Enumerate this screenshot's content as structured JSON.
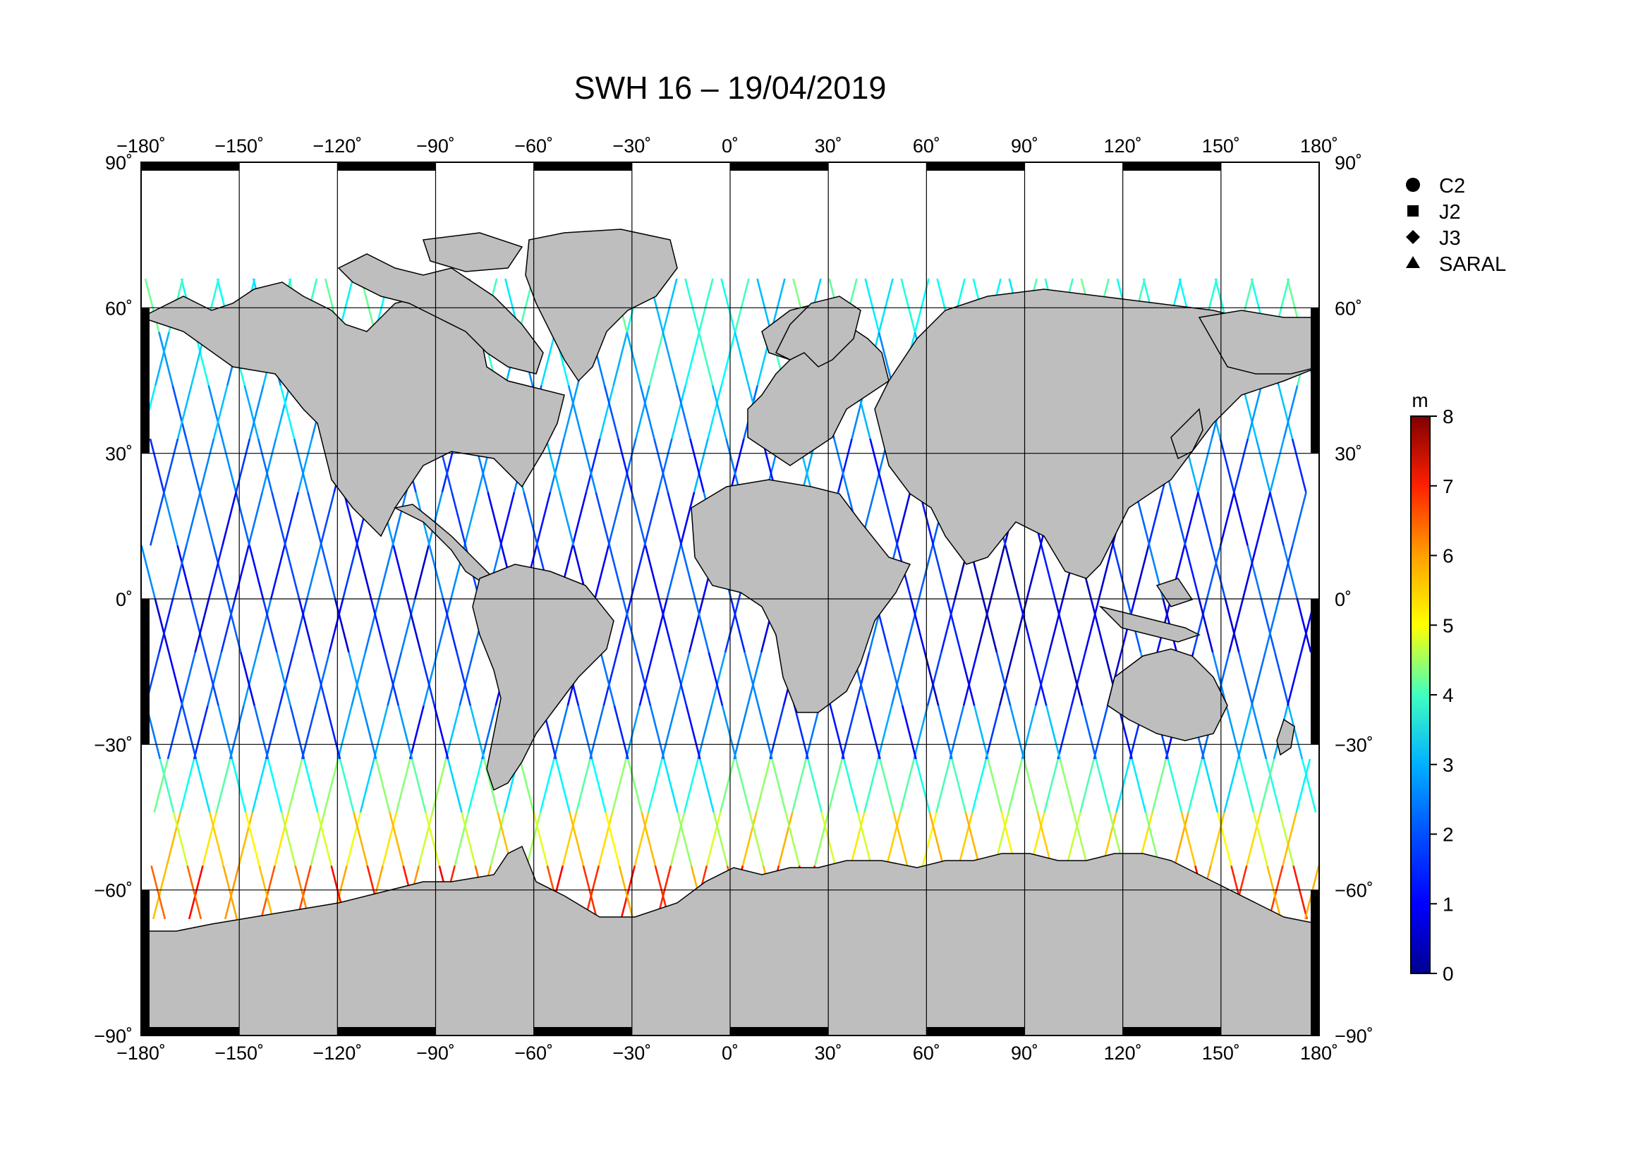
{
  "title": "SWH 16 – 19/04/2019",
  "map": {
    "projection": "equirectangular",
    "lon_range": [
      -180,
      180
    ],
    "lat_range": [
      -90,
      90
    ],
    "lon_ticks": [
      -180,
      -150,
      -120,
      -90,
      -60,
      -30,
      0,
      30,
      60,
      90,
      120,
      150,
      180
    ],
    "lat_ticks": [
      -90,
      -60,
      -30,
      0,
      30,
      60,
      90
    ],
    "lon_tick_labels": [
      "−180˚",
      "−150˚",
      "−120˚",
      "−90˚",
      "−60˚",
      "−30˚",
      "0˚",
      "30˚",
      "60˚",
      "90˚",
      "120˚",
      "150˚",
      "180˚"
    ],
    "lat_tick_labels": [
      "−90˚",
      "−60˚",
      "−30˚",
      "0˚",
      "30˚",
      "60˚",
      "90˚"
    ],
    "grid": true,
    "land_color": "#bebebe",
    "ocean_color": "#ffffff",
    "track_coverage_lat": [
      -66,
      66
    ]
  },
  "legend": {
    "placement": "right",
    "items": [
      {
        "label": "C2",
        "marker": "circle"
      },
      {
        "label": "J2",
        "marker": "square"
      },
      {
        "label": "J3",
        "marker": "diamond"
      },
      {
        "label": "SARAL",
        "marker": "triangle"
      }
    ]
  },
  "colorbar": {
    "unit": "m",
    "min": 0,
    "max": 8,
    "ticks": [
      "0",
      "1",
      "2",
      "3",
      "4",
      "5",
      "6",
      "7",
      "8"
    ],
    "colormap": "jet",
    "colors": [
      "#00008f",
      "#0000ff",
      "#0080ff",
      "#00ffff",
      "#80ff80",
      "#ffff00",
      "#ff8000",
      "#ff0000",
      "#800000"
    ]
  }
}
